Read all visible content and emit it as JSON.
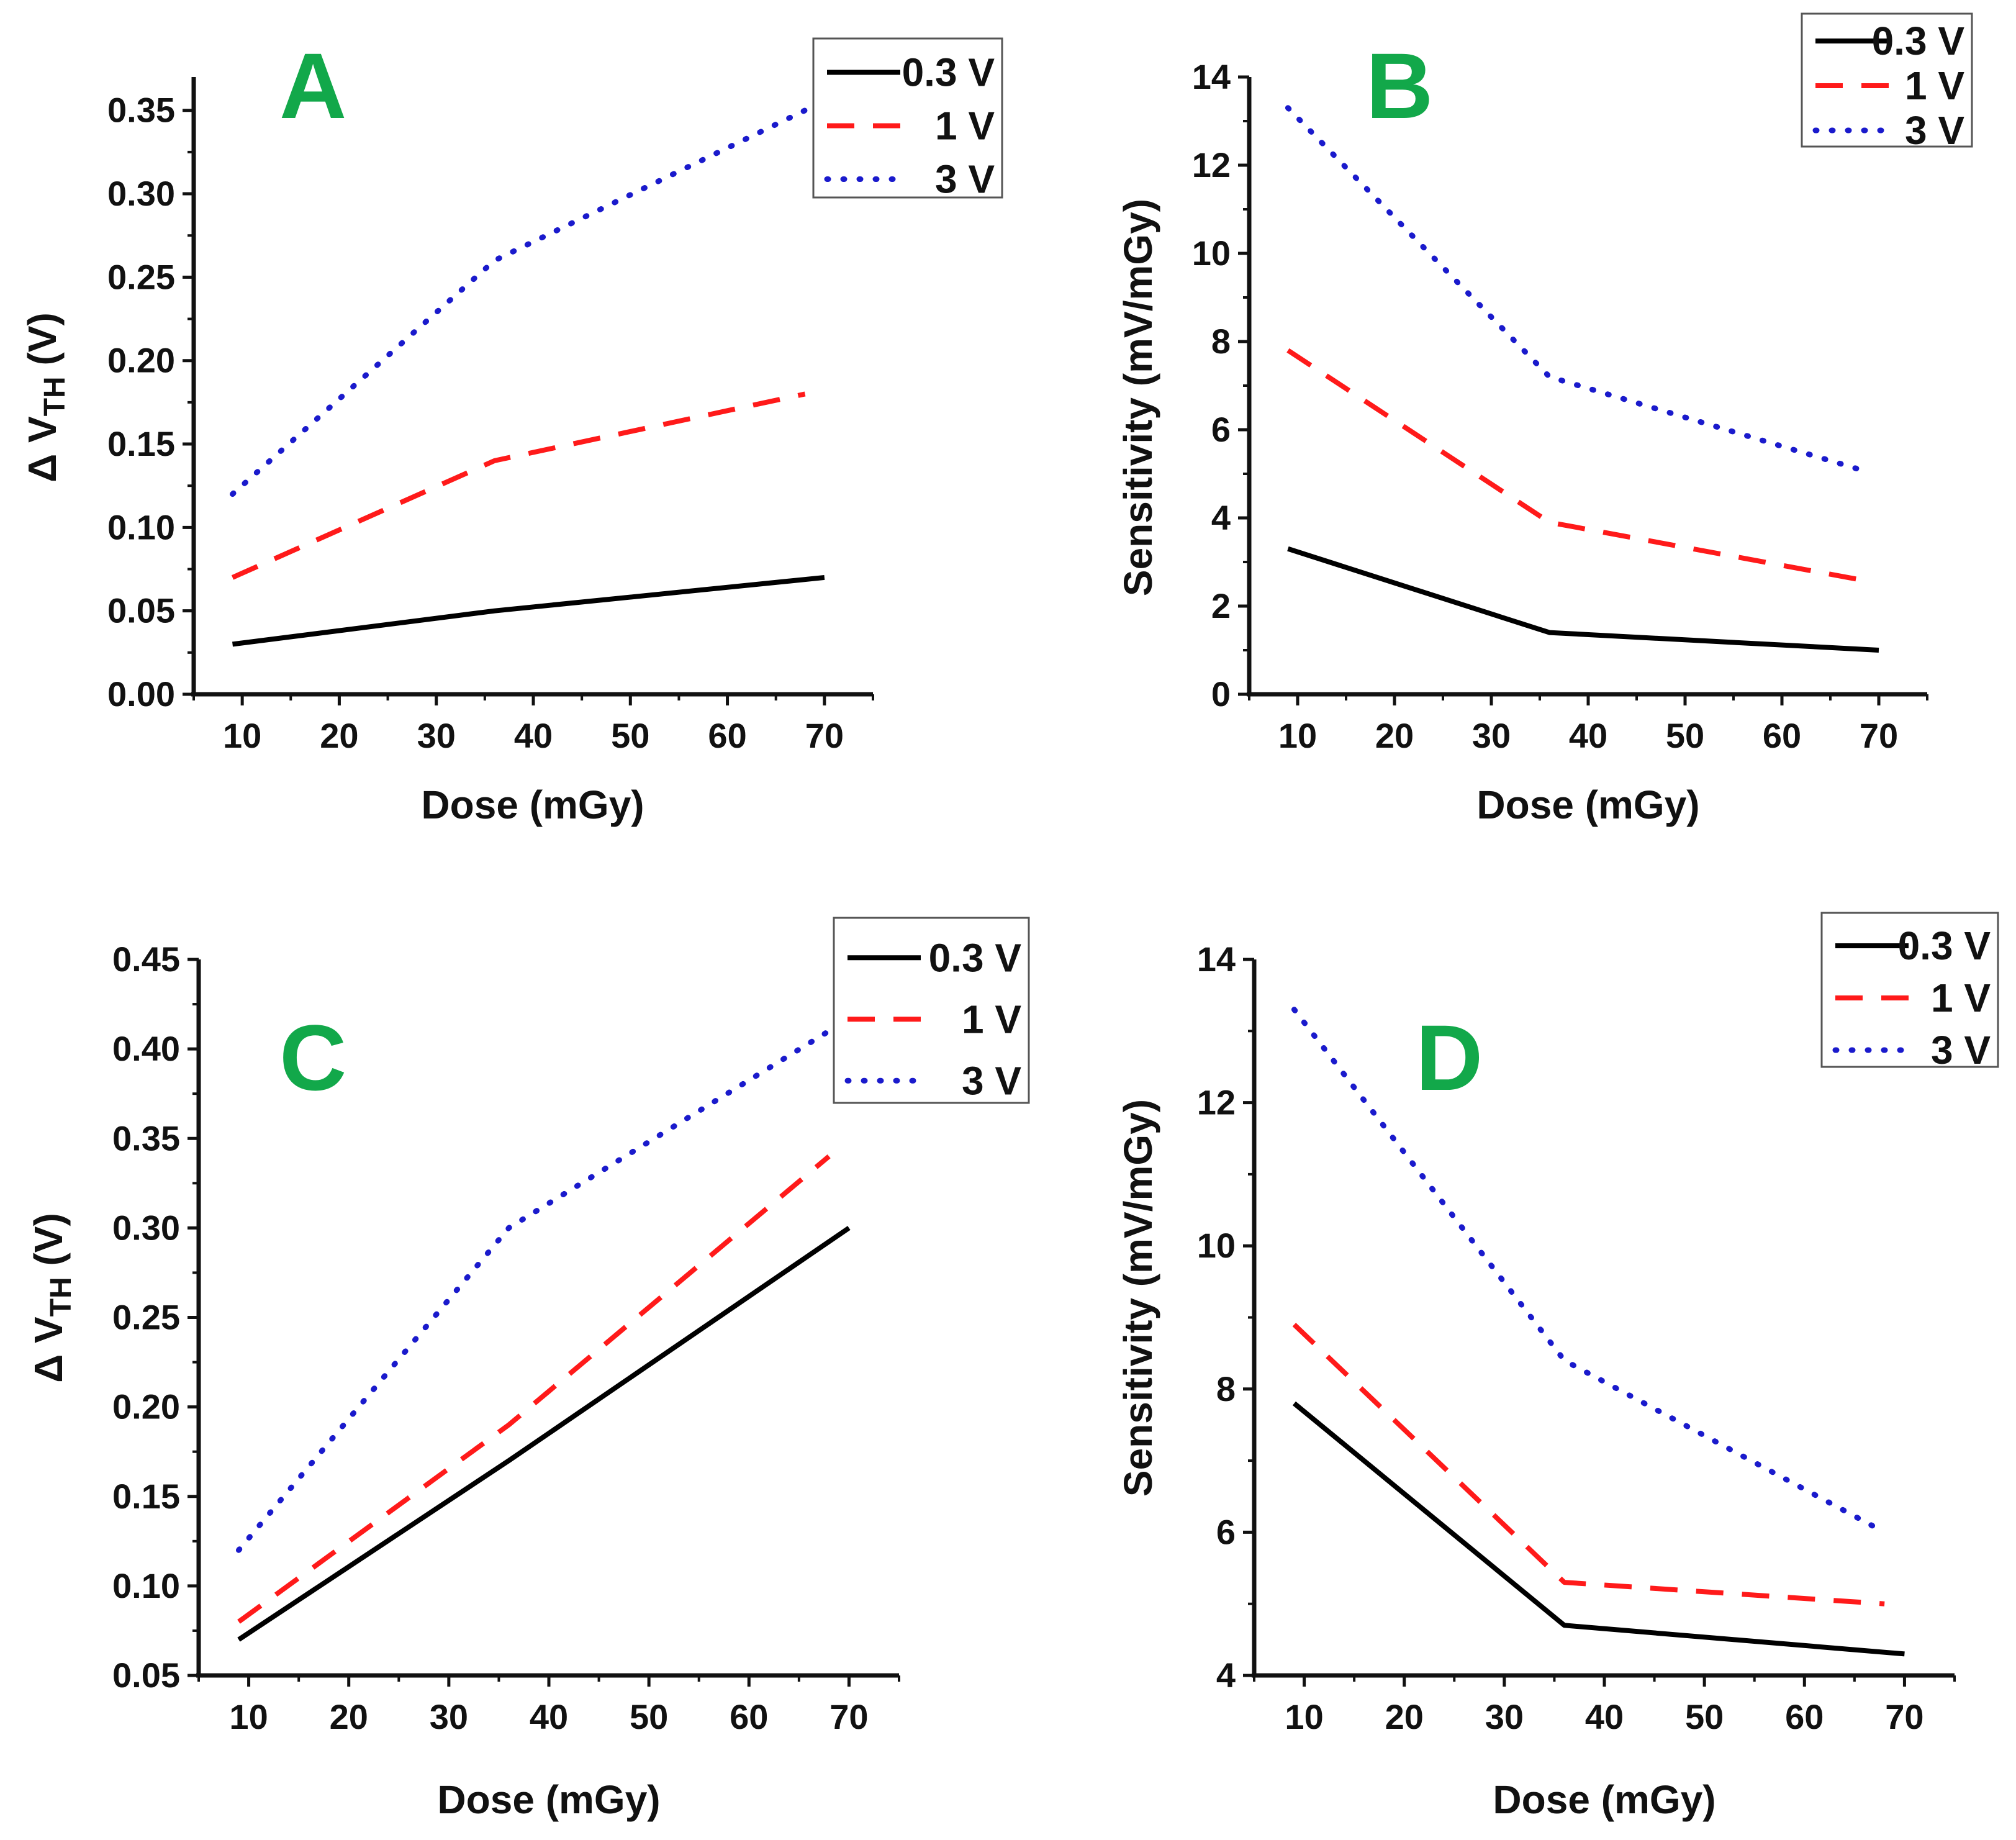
{
  "figure": {
    "x_label": "Dose (mGy)",
    "y_labels": {
      "delta_prefix": "Δ V",
      "delta_sub": "TH",
      "delta_suffix": " (V)",
      "sensitivity": "Sensitivity (mV/mGy)"
    },
    "colors": {
      "0.3 V": "#000000",
      "1 V": "#ff1a1a",
      "3 V": "#1a1acc",
      "panel_letter": "#12a84a"
    }
  },
  "chart_data": [
    {
      "panel": "A",
      "type": "line",
      "title": "",
      "xlabel": "Dose (mGy)",
      "ylabel": "Δ VTH (V)",
      "xlim": [
        5,
        75
      ],
      "ylim": [
        0,
        0.37
      ],
      "xticks": [
        10,
        20,
        30,
        40,
        50,
        60,
        70
      ],
      "yticks": [
        0.0,
        0.05,
        0.1,
        0.15,
        0.2,
        0.25,
        0.3,
        0.35
      ],
      "ytick_decimals": 2,
      "legend": {
        "position": "top-right",
        "entries": [
          "0.3 V",
          "1 V",
          "3 V"
        ]
      },
      "series": [
        {
          "name": "0.3 V",
          "style": "solid",
          "x": [
            9,
            36,
            70
          ],
          "y": [
            0.03,
            0.05,
            0.07
          ]
        },
        {
          "name": "1 V",
          "style": "dashed",
          "x": [
            9,
            36,
            68
          ],
          "y": [
            0.07,
            0.14,
            0.18
          ]
        },
        {
          "name": "3 V",
          "style": "dotted",
          "x": [
            9,
            36,
            68
          ],
          "y": [
            0.12,
            0.26,
            0.35
          ]
        }
      ]
    },
    {
      "panel": "B",
      "type": "line",
      "title": "",
      "xlabel": "Dose (mGy)",
      "ylabel": "Sensitivity (mV/mGy)",
      "xlim": [
        5,
        75
      ],
      "ylim": [
        0,
        14
      ],
      "xticks": [
        10,
        20,
        30,
        40,
        50,
        60,
        70
      ],
      "yticks": [
        0,
        2,
        4,
        6,
        8,
        10,
        12,
        14
      ],
      "ytick_decimals": 0,
      "legend": {
        "position": "top-right",
        "entries": [
          "0.3 V",
          "1 V",
          "3 V"
        ]
      },
      "series": [
        {
          "name": "0.3 V",
          "style": "solid",
          "x": [
            9,
            36,
            70
          ],
          "y": [
            3.3,
            1.4,
            1.0
          ]
        },
        {
          "name": "1 V",
          "style": "dashed",
          "x": [
            9,
            36,
            68
          ],
          "y": [
            7.8,
            3.9,
            2.6
          ]
        },
        {
          "name": "3 V",
          "style": "dotted",
          "x": [
            9,
            36,
            68
          ],
          "y": [
            13.3,
            7.2,
            5.1
          ]
        }
      ]
    },
    {
      "panel": "C",
      "type": "line",
      "title": "",
      "xlabel": "Dose (mGy)",
      "ylabel": "Δ VTH (V)",
      "xlim": [
        5,
        75
      ],
      "ylim": [
        0.05,
        0.45
      ],
      "xticks": [
        10,
        20,
        30,
        40,
        50,
        60,
        70
      ],
      "yticks": [
        0.05,
        0.1,
        0.15,
        0.2,
        0.25,
        0.3,
        0.35,
        0.4,
        0.45
      ],
      "ytick_decimals": 2,
      "legend": {
        "position": "top-right",
        "entries": [
          "0.3 V",
          "1 V",
          "3 V"
        ]
      },
      "series": [
        {
          "name": "0.3 V",
          "style": "solid",
          "x": [
            9,
            36,
            70
          ],
          "y": [
            0.07,
            0.17,
            0.3
          ]
        },
        {
          "name": "1 V",
          "style": "dashed",
          "x": [
            9,
            36,
            68
          ],
          "y": [
            0.08,
            0.19,
            0.34
          ]
        },
        {
          "name": "3 V",
          "style": "dotted",
          "x": [
            9,
            36,
            68
          ],
          "y": [
            0.12,
            0.3,
            0.41
          ]
        }
      ]
    },
    {
      "panel": "D",
      "type": "line",
      "title": "",
      "xlabel": "Dose (mGy)",
      "ylabel": "Sensitivity (mV/mGy)",
      "xlim": [
        5,
        75
      ],
      "ylim": [
        4,
        14
      ],
      "xticks": [
        10,
        20,
        30,
        40,
        50,
        60,
        70
      ],
      "yticks": [
        4,
        6,
        8,
        10,
        12,
        14
      ],
      "ytick_decimals": 0,
      "legend": {
        "position": "top-right",
        "entries": [
          "0.3 V",
          "1 V",
          "3 V"
        ]
      },
      "series": [
        {
          "name": "0.3 V",
          "style": "solid",
          "x": [
            9,
            36,
            70
          ],
          "y": [
            7.8,
            4.7,
            4.3
          ]
        },
        {
          "name": "1 V",
          "style": "dashed",
          "x": [
            9,
            36,
            68
          ],
          "y": [
            8.9,
            5.3,
            5.0
          ]
        },
        {
          "name": "3 V",
          "style": "dotted",
          "x": [
            9,
            36,
            68
          ],
          "y": [
            13.3,
            8.4,
            6.0
          ]
        }
      ]
    }
  ]
}
